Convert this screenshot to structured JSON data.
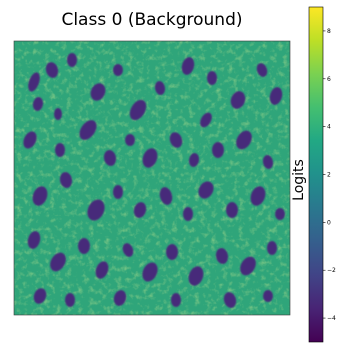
{
  "chart_data": {
    "type": "heatmap",
    "title": "Class 0 (Background)",
    "colormap": "viridis",
    "colorbar": {
      "label": "Logits",
      "range": [
        -5,
        9
      ],
      "ticks": [
        -4,
        -2,
        0,
        2,
        4,
        6,
        8
      ],
      "tick_labels": [
        "−4",
        "−2",
        "0",
        "2",
        "4",
        "6",
        "8"
      ]
    },
    "value_summary": {
      "background_level": 4,
      "dark_blob_level": -4
    },
    "axes_visible": false,
    "grid": false
  }
}
